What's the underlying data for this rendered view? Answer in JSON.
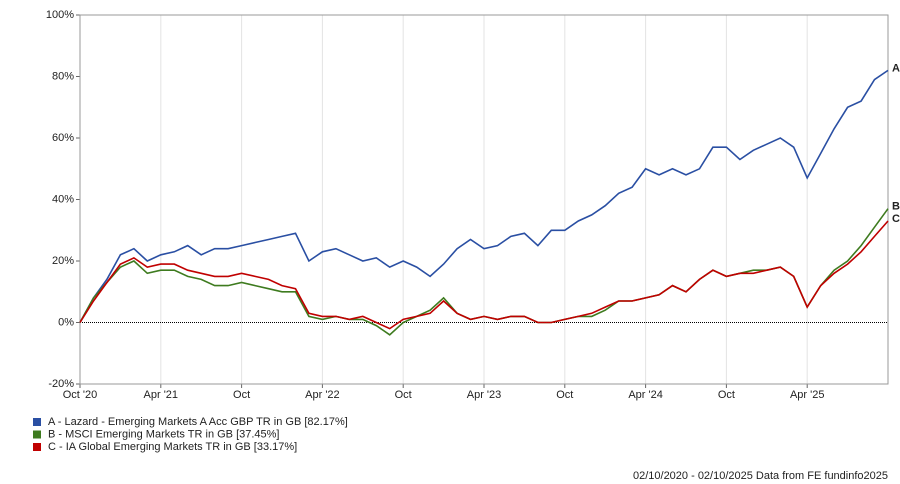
{
  "chart_data": {
    "type": "line",
    "footer": "02/10/2020 - 02/10/2025 Data from FE fundinfo2025",
    "x": [
      "2020-10",
      "2020-11",
      "2020-12",
      "2021-01",
      "2021-02",
      "2021-03",
      "2021-04",
      "2021-05",
      "2021-06",
      "2021-07",
      "2021-08",
      "2021-09",
      "2021-10",
      "2021-11",
      "2021-12",
      "2022-01",
      "2022-02",
      "2022-03",
      "2022-04",
      "2022-05",
      "2022-06",
      "2022-07",
      "2022-08",
      "2022-09",
      "2022-10",
      "2022-11",
      "2022-12",
      "2023-01",
      "2023-02",
      "2023-03",
      "2023-04",
      "2023-05",
      "2023-06",
      "2023-07",
      "2023-08",
      "2023-09",
      "2023-10",
      "2023-11",
      "2023-12",
      "2024-01",
      "2024-02",
      "2024-03",
      "2024-04",
      "2024-05",
      "2024-06",
      "2024-07",
      "2024-08",
      "2024-09",
      "2024-10",
      "2024-11",
      "2024-12",
      "2025-01",
      "2025-02",
      "2025-03",
      "2025-04",
      "2025-05",
      "2025-06",
      "2025-07",
      "2025-08",
      "2025-09",
      "2025-10"
    ],
    "series": [
      {
        "name": "A - Lazard - Emerging Markets A Acc GBP TR in GB [82.17%]",
        "end_label": "A",
        "color": "#2a4fa3",
        "values": [
          0,
          8,
          14,
          22,
          24,
          20,
          22,
          23,
          25,
          22,
          24,
          24,
          25,
          26,
          27,
          28,
          29,
          20,
          23,
          24,
          22,
          20,
          21,
          18,
          20,
          18,
          15,
          19,
          24,
          27,
          24,
          25,
          28,
          29,
          25,
          30,
          30,
          33,
          35,
          38,
          42,
          44,
          50,
          48,
          50,
          48,
          50,
          57,
          57,
          53,
          56,
          58,
          60,
          57,
          47,
          55,
          63,
          70,
          72,
          79,
          82
        ]
      },
      {
        "name": "B - MSCI Emerging Markets TR in GB [37.45%]",
        "end_label": "B",
        "color": "#3e7b1f",
        "values": [
          0,
          8,
          13,
          18,
          20,
          16,
          17,
          17,
          15,
          14,
          12,
          12,
          13,
          12,
          11,
          10,
          10,
          2,
          1,
          2,
          1,
          1,
          -1,
          -4,
          0,
          2,
          4,
          8,
          3,
          1,
          2,
          1,
          2,
          2,
          0,
          0,
          1,
          2,
          2,
          4,
          7,
          7,
          8,
          9,
          12,
          10,
          14,
          17,
          15,
          16,
          17,
          17,
          18,
          15,
          5,
          12,
          17,
          20,
          25,
          31,
          37
        ]
      },
      {
        "name": "C - IA Global Emerging Markets TR in GB [33.17%]",
        "end_label": "C",
        "color": "#c00000",
        "values": [
          0,
          7,
          13,
          19,
          21,
          18,
          19,
          19,
          17,
          16,
          15,
          15,
          16,
          15,
          14,
          12,
          11,
          3,
          2,
          2,
          1,
          2,
          0,
          -2,
          1,
          2,
          3,
          7,
          3,
          1,
          2,
          1,
          2,
          2,
          0,
          0,
          1,
          2,
          3,
          5,
          7,
          7,
          8,
          9,
          12,
          10,
          14,
          17,
          15,
          16,
          16,
          17,
          18,
          15,
          5,
          12,
          16,
          19,
          23,
          28,
          33
        ]
      }
    ],
    "xlim": [
      "2020-10",
      "2025-10"
    ],
    "xticks": [
      {
        "value": "2020-10",
        "label": "Oct '20"
      },
      {
        "value": "2021-04",
        "label": "Apr '21"
      },
      {
        "value": "2021-10",
        "label": "Oct"
      },
      {
        "value": "2022-04",
        "label": "Apr '22"
      },
      {
        "value": "2022-10",
        "label": "Oct"
      },
      {
        "value": "2023-04",
        "label": "Apr '23"
      },
      {
        "value": "2023-10",
        "label": "Oct"
      },
      {
        "value": "2024-04",
        "label": "Apr '24"
      },
      {
        "value": "2024-10",
        "label": "Oct"
      },
      {
        "value": "2025-04",
        "label": "Apr '25"
      }
    ],
    "ylim": [
      -20,
      100
    ],
    "yticks": [
      {
        "value": -20,
        "label": "-20%"
      },
      {
        "value": 0,
        "label": "0%"
      },
      {
        "value": 20,
        "label": "20%"
      },
      {
        "value": 40,
        "label": "40%"
      },
      {
        "value": 60,
        "label": "60%"
      },
      {
        "value": 80,
        "label": "80%"
      },
      {
        "value": 100,
        "label": "100%"
      }
    ],
    "grid": true
  }
}
